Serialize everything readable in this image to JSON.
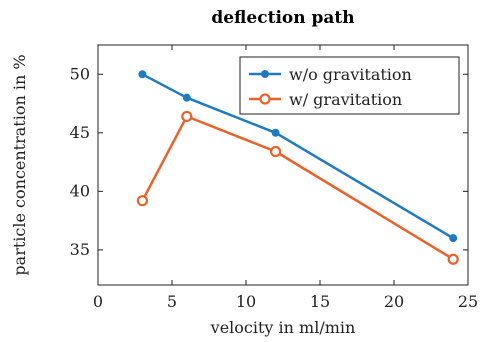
{
  "chart_data": {
    "type": "line",
    "title": "deflection path",
    "xlabel": "velocity in ml/min",
    "ylabel": "particle concentration in %",
    "xlim": [
      0,
      25
    ],
    "ylim": [
      32,
      52.5
    ],
    "xticks": [
      0,
      5,
      10,
      15,
      20,
      25
    ],
    "yticks": [
      35,
      40,
      45,
      50
    ],
    "grid": false,
    "legend_position": "top-right",
    "series": [
      {
        "name": "w/o gravitation",
        "color": "#1f7bc1",
        "marker": "filled-circle",
        "x": [
          3,
          6,
          12,
          24
        ],
        "y": [
          50,
          48,
          45,
          36
        ]
      },
      {
        "name": "w/ gravitation",
        "color": "#e8632b",
        "marker": "open-circle",
        "x": [
          3,
          6,
          12,
          24
        ],
        "y": [
          39.2,
          46.4,
          43.4,
          34.2
        ]
      }
    ]
  }
}
